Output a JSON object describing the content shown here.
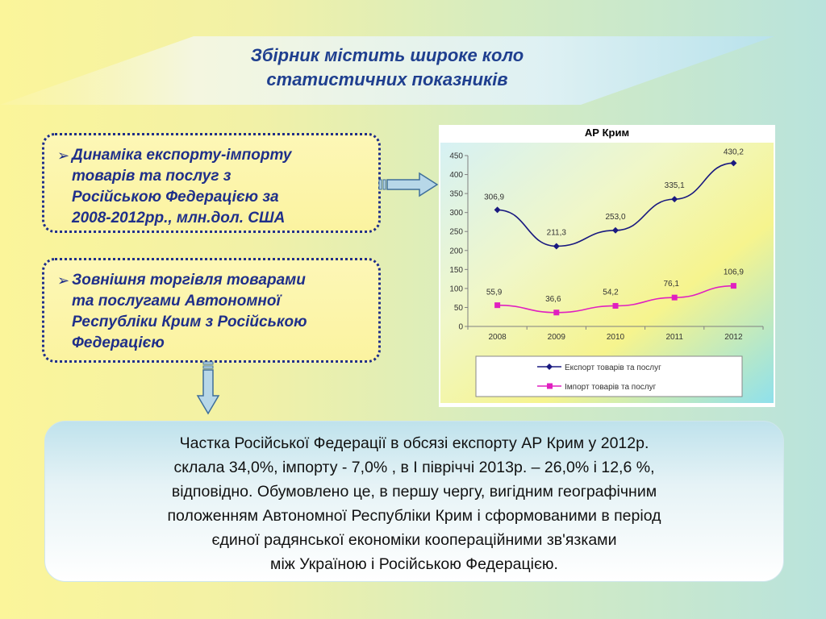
{
  "title": {
    "line1": "Збірник містить широке коло",
    "line2": "статистичних показників"
  },
  "boxes": [
    {
      "bullet": "➢",
      "text": "Динаміка експорту-імпорту\nтоварів та послуг з\nРосійською Федерацією за\n2008-2012рр., млн.дол. США"
    },
    {
      "bullet": "➢",
      "text": "Зовнішня торгівля товарами\nта послугами Автономної\nРеспубліки Крим з Російською\nФедерацією"
    }
  ],
  "colors": {
    "export_series": "#1a1a80",
    "import_series": "#e020c0",
    "box_border": "#1f2f8a",
    "title": "#1f3f8f",
    "arrow_fill": "#b7d7e8"
  },
  "chart_data": {
    "type": "line",
    "title": "АР Крим",
    "categories": [
      "2008",
      "2009",
      "2010",
      "2011",
      "2012"
    ],
    "ylim": [
      0,
      450
    ],
    "yticks": [
      0,
      50,
      100,
      150,
      200,
      250,
      300,
      350,
      400,
      450
    ],
    "grid": false,
    "legend_position": "bottom",
    "series": [
      {
        "name": "Експорт товарів та послуг",
        "values": [
          306.9,
          211.3,
          253.0,
          335.1,
          430.2
        ],
        "labels": [
          "306,9",
          "211,3",
          "253,0",
          "335,1",
          "430,2"
        ],
        "marker": "diamond"
      },
      {
        "name": "Імпорт товарів та послуг",
        "values": [
          55.9,
          36.6,
          54.2,
          76.1,
          106.9
        ],
        "labels": [
          "55,9",
          "36,6",
          "54,2",
          "76,1",
          "106,9"
        ],
        "marker": "square"
      }
    ]
  },
  "bottom_text": {
    "line1": "Частка Російської Федерації в обсязі експорту АР Крим у 2012р.",
    "line2": "склала 34,0%, імпорту - 7,0% , в І півріччі 2013р. – 26,0% і 12,6 %,",
    "line3": "відповідно. Обумовлено це, в першу чергу, вигідним географічним",
    "line4": "положенням Автономної Республіки Крим і сформованими в період",
    "line5": "єдиної радянської економіки коопераційними зв'язками",
    "line6": "між Україною і Російською Федерацією."
  }
}
